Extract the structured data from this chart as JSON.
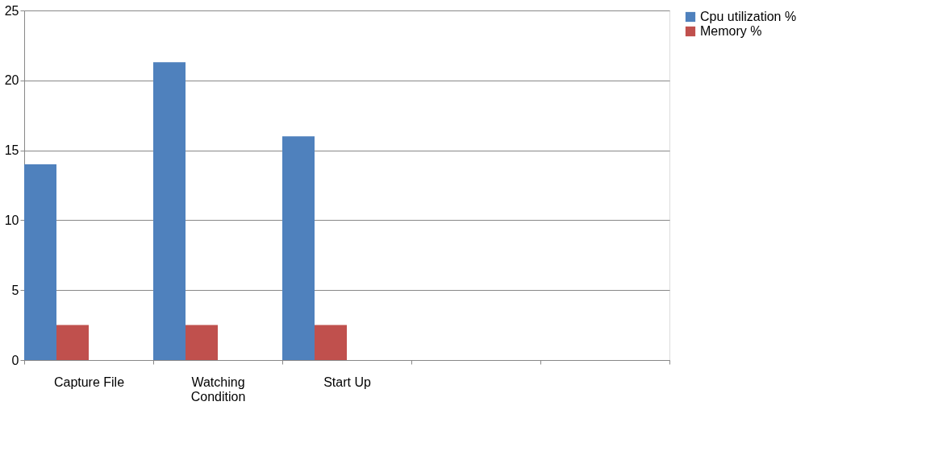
{
  "chart_data": {
    "type": "bar",
    "categories": [
      "Capture File",
      "Watching Condition",
      "Start Up",
      null,
      null
    ],
    "series": [
      {
        "name": "Cpu utilization %",
        "color": "#4f81bd",
        "values": [
          14,
          21.3,
          16,
          null,
          null
        ]
      },
      {
        "name": "Memory %",
        "color": "#c0504d",
        "values": [
          2.5,
          2.5,
          2.5,
          null,
          null
        ]
      }
    ],
    "ylim": [
      0,
      25
    ],
    "yticks": [
      0,
      5,
      10,
      15,
      20,
      25
    ],
    "grid": "y",
    "legend": "right"
  }
}
